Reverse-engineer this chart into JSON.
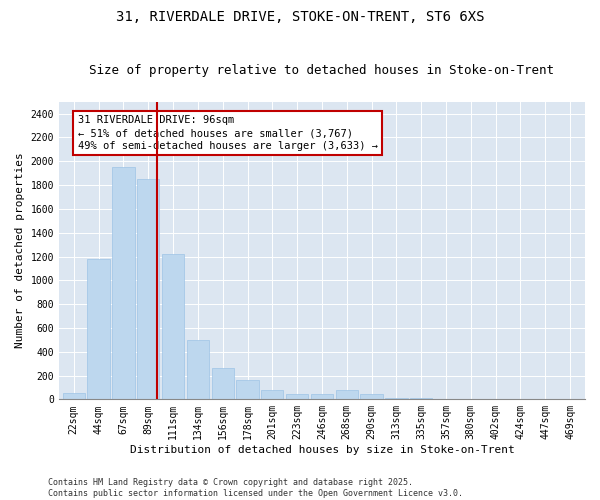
{
  "title1": "31, RIVERDALE DRIVE, STOKE-ON-TRENT, ST6 6XS",
  "title2": "Size of property relative to detached houses in Stoke-on-Trent",
  "xlabel": "Distribution of detached houses by size in Stoke-on-Trent",
  "ylabel": "Number of detached properties",
  "categories": [
    "22sqm",
    "44sqm",
    "67sqm",
    "89sqm",
    "111sqm",
    "134sqm",
    "156sqm",
    "178sqm",
    "201sqm",
    "223sqm",
    "246sqm",
    "268sqm",
    "290sqm",
    "313sqm",
    "335sqm",
    "357sqm",
    "380sqm",
    "402sqm",
    "424sqm",
    "447sqm",
    "469sqm"
  ],
  "values": [
    50,
    1175,
    1950,
    1850,
    1225,
    500,
    260,
    165,
    80,
    45,
    45,
    75,
    45,
    10,
    8,
    3,
    3,
    2,
    2,
    2,
    2
  ],
  "bar_color": "#bdd7ee",
  "bar_edge_color": "#9dc3e6",
  "vline_color": "#c00000",
  "annotation_text": "31 RIVERDALE DRIVE: 96sqm\n← 51% of detached houses are smaller (3,767)\n49% of semi-detached houses are larger (3,633) →",
  "annotation_box_color": "#ffffff",
  "annotation_box_edge_color": "#c00000",
  "footnote": "Contains HM Land Registry data © Crown copyright and database right 2025.\nContains public sector information licensed under the Open Government Licence v3.0.",
  "ylim": [
    0,
    2500
  ],
  "yticks": [
    0,
    200,
    400,
    600,
    800,
    1000,
    1200,
    1400,
    1600,
    1800,
    2000,
    2200,
    2400
  ],
  "background_color": "#dce6f1",
  "title_fontsize": 10,
  "subtitle_fontsize": 9,
  "axis_label_fontsize": 8,
  "tick_fontsize": 7,
  "annotation_fontsize": 7.5,
  "footnote_fontsize": 6
}
